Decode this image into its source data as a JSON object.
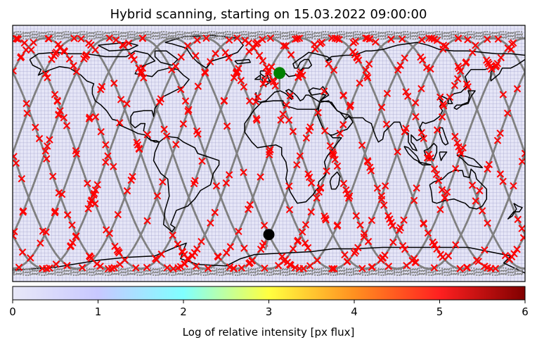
{
  "chart_data": {
    "type": "scatter",
    "title": "Hybrid scanning, starting on 15.03.2022 09:00:00",
    "map": {
      "projection": "plate carree",
      "xlim": [
        -180,
        180
      ],
      "ylim": [
        -90,
        90
      ],
      "background_color": "#e6e6f7",
      "grid": true,
      "coastlines": true
    },
    "start_marker": {
      "lon": 0.0,
      "lat": -57.0,
      "color": "#000000"
    },
    "current_marker": {
      "lon": 7.5,
      "lat": 56.5,
      "color": "#008000"
    },
    "ground_track": {
      "color": "#808080",
      "style": "sinusoidal orbital passes",
      "inclination_deg": 81,
      "passes": 16
    },
    "polar_dots": {
      "color": "#808080",
      "lat_bands": [
        83,
        -83
      ]
    },
    "scan_points": {
      "marker": "x",
      "color": "#ff0000",
      "count": 560
    },
    "colorbar": {
      "label": "Log of relative intensity [px flux]",
      "ticks": [
        "0",
        "1",
        "2",
        "3",
        "4",
        "5",
        "6"
      ],
      "range": [
        0,
        6
      ],
      "colormap": [
        "#e8e8f8",
        "#c8c8ff",
        "#80ffff",
        "#ffff40",
        "#ff9020",
        "#ff2020",
        "#800000"
      ]
    }
  }
}
